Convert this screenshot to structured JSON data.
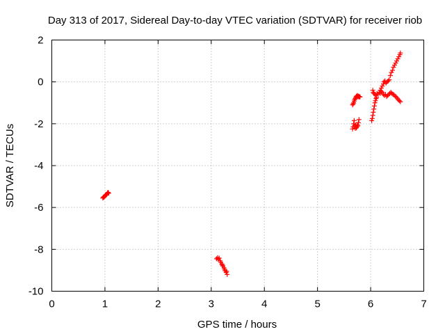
{
  "chart_data": {
    "type": "scatter",
    "title": "Day 313 of 2017, Sidereal Day-to-day VTEC variation (SDTVAR) for receiver riob",
    "xlabel": "GPS time / hours",
    "ylabel": "SDTVAR / TECUs",
    "xlim": [
      0,
      7
    ],
    "ylim": [
      -10,
      2
    ],
    "xticks": [
      "0",
      "1",
      "2",
      "3",
      "4",
      "5",
      "6",
      "7"
    ],
    "yticks": [
      "-10",
      "-8",
      "-6",
      "-4",
      "-2",
      "0",
      "2"
    ],
    "grid": true,
    "marker": "plus",
    "color": "#ff0000",
    "points": [
      [
        0.96,
        -5.55
      ],
      [
        0.97,
        -5.5
      ],
      [
        0.98,
        -5.52
      ],
      [
        0.99,
        -5.47
      ],
      [
        1.0,
        -5.45
      ],
      [
        1.01,
        -5.42
      ],
      [
        1.02,
        -5.4
      ],
      [
        1.03,
        -5.38
      ],
      [
        1.04,
        -5.35
      ],
      [
        1.05,
        -5.3
      ],
      [
        1.06,
        -5.28
      ],
      [
        1.07,
        -5.32
      ],
      [
        3.1,
        -8.45
      ],
      [
        3.12,
        -8.4
      ],
      [
        3.13,
        -8.48
      ],
      [
        3.15,
        -8.42
      ],
      [
        3.17,
        -8.55
      ],
      [
        3.18,
        -8.62
      ],
      [
        3.2,
        -8.7
      ],
      [
        3.21,
        -8.75
      ],
      [
        3.22,
        -8.8
      ],
      [
        3.24,
        -8.88
      ],
      [
        3.25,
        -8.95
      ],
      [
        3.26,
        -9.02
      ],
      [
        3.28,
        -9.1
      ],
      [
        3.3,
        -9.2
      ],
      [
        3.29,
        -9.05
      ],
      [
        5.66,
        -2.25
      ],
      [
        5.67,
        -2.15
      ],
      [
        5.68,
        -2.0
      ],
      [
        5.69,
        -1.85
      ],
      [
        5.7,
        -2.1
      ],
      [
        5.71,
        -2.22
      ],
      [
        5.72,
        -2.05
      ],
      [
        5.73,
        -2.2
      ],
      [
        5.74,
        -2.15
      ],
      [
        5.75,
        -2.05
      ],
      [
        5.76,
        -2.1
      ],
      [
        5.77,
        -1.95
      ],
      [
        5.78,
        -1.8
      ],
      [
        5.66,
        -1.1
      ],
      [
        5.67,
        -1.05
      ],
      [
        5.68,
        -1.0
      ],
      [
        5.69,
        -0.92
      ],
      [
        5.7,
        -0.85
      ],
      [
        5.71,
        -0.8
      ],
      [
        5.72,
        -0.75
      ],
      [
        5.73,
        -0.7
      ],
      [
        5.74,
        -0.68
      ],
      [
        5.75,
        -0.65
      ],
      [
        5.76,
        -0.7
      ],
      [
        5.77,
        -0.68
      ],
      [
        5.78,
        -0.72
      ],
      [
        5.79,
        -0.7
      ],
      [
        5.8,
        -0.72
      ],
      [
        6.02,
        -1.85
      ],
      [
        6.03,
        -1.75
      ],
      [
        6.04,
        -1.6
      ],
      [
        6.05,
        -1.45
      ],
      [
        6.06,
        -1.3
      ],
      [
        6.07,
        -1.15
      ],
      [
        6.08,
        -1.0
      ],
      [
        6.09,
        -0.9
      ],
      [
        6.1,
        -0.8
      ],
      [
        6.11,
        -0.75
      ],
      [
        6.04,
        -0.4
      ],
      [
        6.05,
        -0.5
      ],
      [
        6.06,
        -0.55
      ],
      [
        6.08,
        -0.6
      ],
      [
        6.1,
        -0.65
      ],
      [
        6.12,
        -0.55
      ],
      [
        6.14,
        -0.6
      ],
      [
        6.16,
        -0.5
      ],
      [
        6.18,
        -0.55
      ],
      [
        6.2,
        -0.45
      ],
      [
        6.22,
        -0.5
      ],
      [
        6.24,
        -0.6
      ],
      [
        6.26,
        -0.65
      ],
      [
        6.28,
        -0.6
      ],
      [
        6.3,
        -0.7
      ],
      [
        6.32,
        -0.65
      ],
      [
        6.34,
        -0.6
      ],
      [
        6.36,
        -0.55
      ],
      [
        6.38,
        -0.5
      ],
      [
        6.4,
        -0.55
      ],
      [
        6.42,
        -0.6
      ],
      [
        6.44,
        -0.62
      ],
      [
        6.46,
        -0.68
      ],
      [
        6.48,
        -0.72
      ],
      [
        6.5,
        -0.78
      ],
      [
        6.52,
        -0.85
      ],
      [
        6.54,
        -0.9
      ],
      [
        6.56,
        -0.95
      ],
      [
        6.18,
        -0.4
      ],
      [
        6.2,
        -0.3
      ],
      [
        6.22,
        -0.2
      ],
      [
        6.24,
        -0.1
      ],
      [
        6.25,
        0.0
      ],
      [
        6.27,
        0.05
      ],
      [
        6.29,
        -0.05
      ],
      [
        6.31,
        0.0
      ],
      [
        6.33,
        0.05
      ],
      [
        6.35,
        0.1
      ],
      [
        6.37,
        0.3
      ],
      [
        6.39,
        0.45
      ],
      [
        6.41,
        0.55
      ],
      [
        6.43,
        0.7
      ],
      [
        6.45,
        0.8
      ],
      [
        6.47,
        0.9
      ],
      [
        6.49,
        1.0
      ],
      [
        6.51,
        1.1
      ],
      [
        6.53,
        1.2
      ],
      [
        6.55,
        1.3
      ],
      [
        6.56,
        1.38
      ]
    ]
  }
}
